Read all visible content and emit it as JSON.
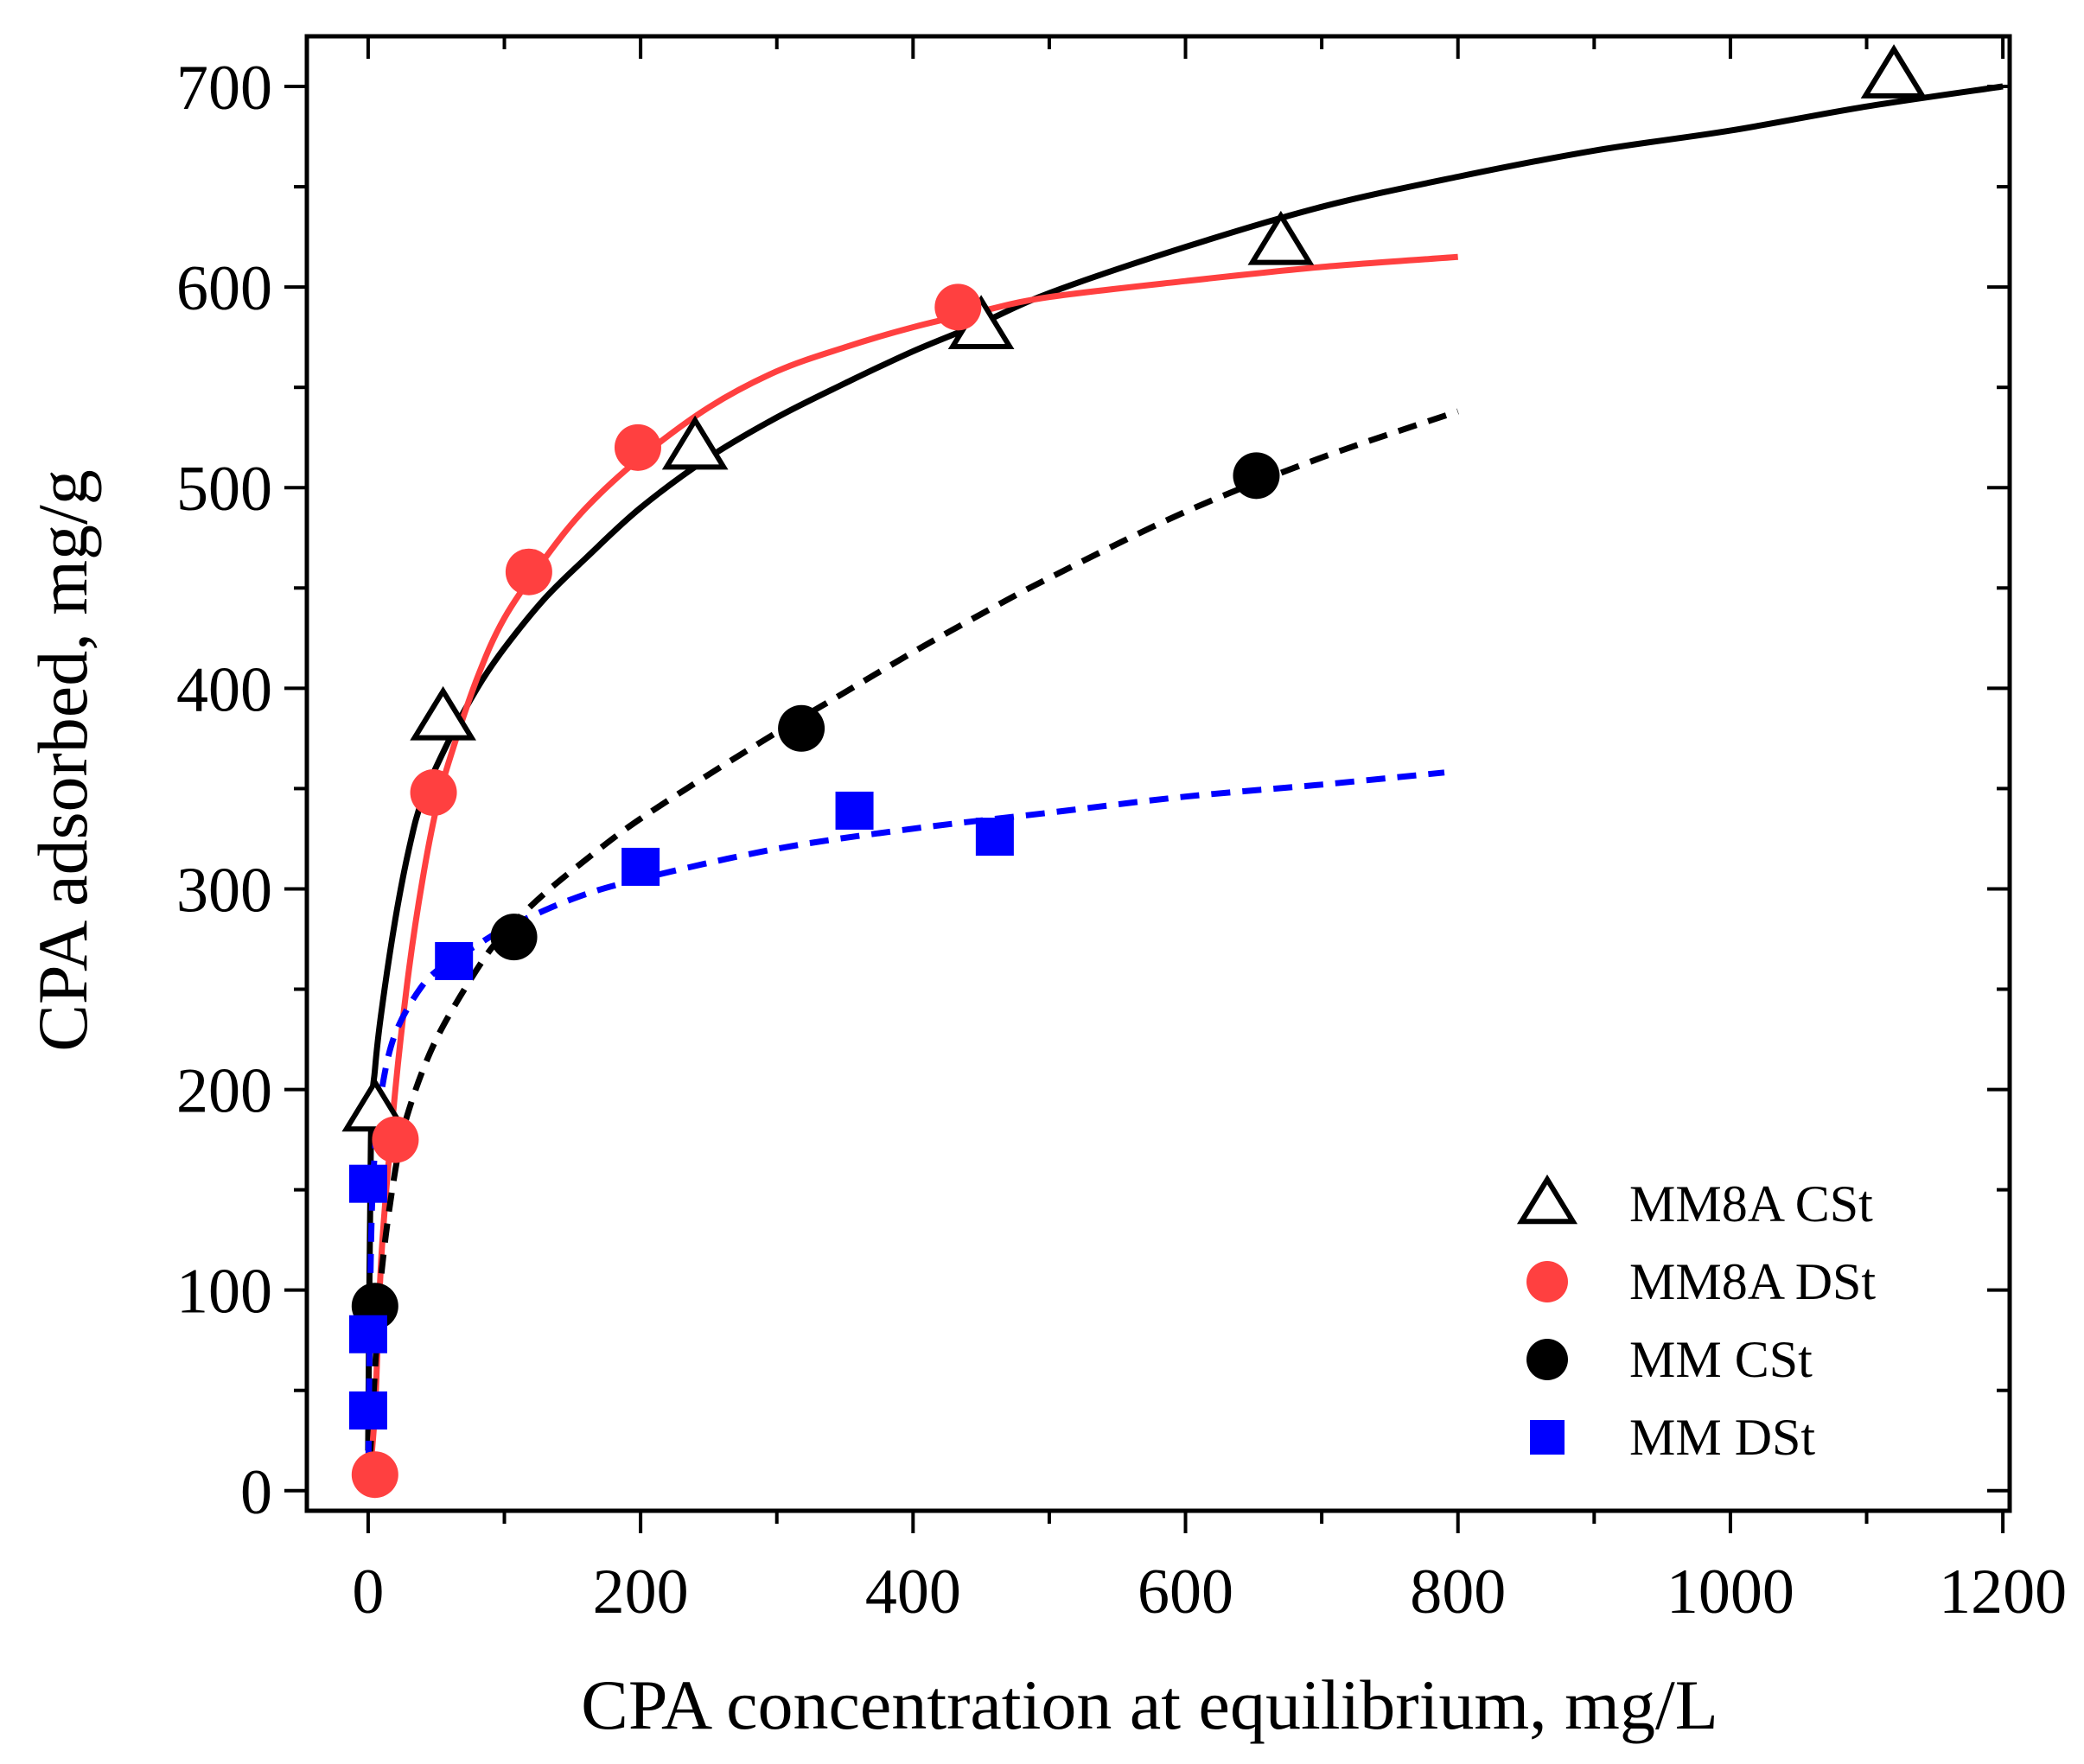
{
  "chart_data": {
    "type": "scatter",
    "title": "",
    "xlabel": "CPA concentration at equilibrium, mg/L",
    "ylabel": "CPA adsorbed, mg/g",
    "xlim": [
      -45,
      1205
    ],
    "ylim": [
      -10,
      725
    ],
    "xticks": [
      0,
      200,
      400,
      600,
      800,
      1000,
      1200
    ],
    "yticks": [
      0,
      100,
      200,
      300,
      400,
      500,
      600,
      700
    ],
    "xtick_labels": [
      "0",
      "200",
      "400",
      "600",
      "800",
      "1000",
      "1200"
    ],
    "ytick_labels": [
      "0",
      "100",
      "200",
      "300",
      "400",
      "500",
      "600",
      "700"
    ],
    "grid": false,
    "legend_position": "bottom-right",
    "series": [
      {
        "name": "MM8A CSt",
        "marker": "open-triangle",
        "color": "#000000",
        "points": [
          [
            5,
            190
          ],
          [
            55,
            385
          ],
          [
            240,
            520
          ],
          [
            450,
            580
          ],
          [
            670,
            622
          ],
          [
            1120,
            705
          ]
        ],
        "fit": {
          "style": "solid",
          "color": "#000000",
          "points": [
            [
              0,
              20
            ],
            [
              2,
              175
            ],
            [
              5,
              210
            ],
            [
              10,
              240
            ],
            [
              20,
              285
            ],
            [
              30,
              320
            ],
            [
              40,
              345
            ],
            [
              60,
              375
            ],
            [
              80,
              400
            ],
            [
              100,
              420
            ],
            [
              130,
              445
            ],
            [
              160,
              465
            ],
            [
              200,
              490
            ],
            [
              250,
              515
            ],
            [
              300,
              535
            ],
            [
              350,
              552
            ],
            [
              400,
              568
            ],
            [
              450,
              582
            ],
            [
              500,
              597
            ],
            [
              600,
              620
            ],
            [
              700,
              640
            ],
            [
              800,
              655
            ],
            [
              900,
              668
            ],
            [
              1000,
              678
            ],
            [
              1100,
              690
            ],
            [
              1200,
              700
            ]
          ]
        }
      },
      {
        "name": "MM8A DSt",
        "marker": "filled-circle",
        "color": "#ff4040",
        "points": [
          [
            5,
            8
          ],
          [
            20,
            175
          ],
          [
            48,
            348
          ],
          [
            118,
            458
          ],
          [
            198,
            520
          ],
          [
            433,
            590
          ]
        ],
        "fit": {
          "style": "solid",
          "color": "#ff4040",
          "points": [
            [
              0,
              0
            ],
            [
              5,
              40
            ],
            [
              10,
              120
            ],
            [
              20,
              200
            ],
            [
              30,
              260
            ],
            [
              40,
              305
            ],
            [
              50,
              340
            ],
            [
              60,
              365
            ],
            [
              80,
              405
            ],
            [
              100,
              435
            ],
            [
              130,
              465
            ],
            [
              160,
              490
            ],
            [
              200,
              515
            ],
            [
              250,
              540
            ],
            [
              300,
              558
            ],
            [
              350,
              570
            ],
            [
              400,
              580
            ],
            [
              450,
              588
            ],
            [
              500,
              595
            ],
            [
              600,
              603
            ],
            [
              700,
              610
            ],
            [
              800,
              615
            ]
          ]
        }
      },
      {
        "name": "MM CSt",
        "marker": "filled-circle",
        "color": "#000000",
        "points": [
          [
            5,
            92
          ],
          [
            107,
            276
          ],
          [
            318,
            380
          ],
          [
            652,
            506
          ]
        ],
        "fit": {
          "style": "dashed",
          "color": "#000000",
          "points": [
            [
              0,
              0
            ],
            [
              5,
              60
            ],
            [
              10,
              110
            ],
            [
              20,
              160
            ],
            [
              30,
              190
            ],
            [
              50,
              225
            ],
            [
              80,
              260
            ],
            [
              100,
              278
            ],
            [
              130,
              298
            ],
            [
              170,
              320
            ],
            [
              200,
              335
            ],
            [
              250,
              357
            ],
            [
              300,
              378
            ],
            [
              350,
              398
            ],
            [
              400,
              418
            ],
            [
              450,
              437
            ],
            [
              500,
              455
            ],
            [
              600,
              488
            ],
            [
              700,
              515
            ],
            [
              800,
              538
            ]
          ]
        }
      },
      {
        "name": "MM DSt",
        "marker": "filled-square",
        "color": "#0000ff",
        "points": [
          [
            0,
            40
          ],
          [
            0,
            78
          ],
          [
            0,
            153
          ],
          [
            63,
            264
          ],
          [
            200,
            311
          ],
          [
            357,
            339
          ],
          [
            460,
            326
          ]
        ],
        "fit": {
          "style": "dashed",
          "color": "#0000ff",
          "points": [
            [
              0,
              0
            ],
            [
              2,
              120
            ],
            [
              5,
              170
            ],
            [
              10,
              200
            ],
            [
              20,
              228
            ],
            [
              40,
              252
            ],
            [
              60,
              264
            ],
            [
              80,
              272
            ],
            [
              100,
              280
            ],
            [
              150,
              295
            ],
            [
              200,
              305
            ],
            [
              300,
              320
            ],
            [
              400,
              330
            ],
            [
              500,
              338
            ],
            [
              600,
              346
            ],
            [
              700,
              352
            ],
            [
              790,
              358
            ]
          ]
        }
      }
    ]
  }
}
